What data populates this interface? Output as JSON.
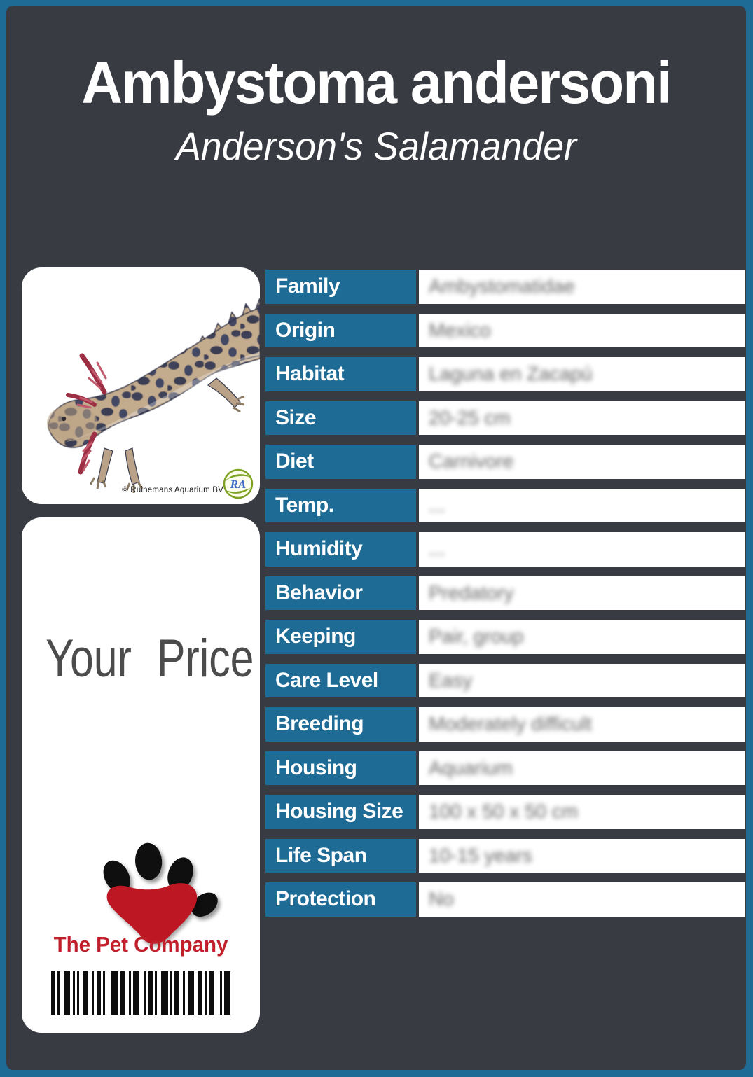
{
  "header": {
    "title": "Ambystoma andersoni",
    "subtitle": "Anderson's Salamander"
  },
  "photo_card": {
    "copyright": "© Ruinemans Aquarium BV",
    "supplier_logo_text": "RA"
  },
  "price_card": {
    "price_label": "Your Price",
    "company": "The Pet Company"
  },
  "table": {
    "rows": [
      {
        "label": "Family",
        "value": "Ambystomatidae"
      },
      {
        "label": "Origin",
        "value": "Mexico"
      },
      {
        "label": "Habitat",
        "value": "Laguna en Zacapú"
      },
      {
        "label": "Size",
        "value": "20-25 cm"
      },
      {
        "label": "Diet",
        "value": "Carnivore"
      },
      {
        "label": "Temp.",
        "value": "..."
      },
      {
        "label": "Humidity",
        "value": "..."
      },
      {
        "label": "Behavior",
        "value": "Predatory"
      },
      {
        "label": "Keeping",
        "value": "Pair, group"
      },
      {
        "label": "Care Level",
        "value": "Easy"
      },
      {
        "label": "Breeding",
        "value": "Moderately difficult"
      },
      {
        "label": "Housing",
        "value": "Aquarium"
      },
      {
        "label": "Housing Size",
        "value": "100 x 50 x 50 cm"
      },
      {
        "label": "Life Span",
        "value": "10-15 years"
      },
      {
        "label": "Protection",
        "value": "No"
      }
    ]
  },
  "colors": {
    "frame_blue": "#1e6b95",
    "panel_dark": "#393b42",
    "label_blue": "#1e6b95",
    "accent_red": "#c1202b",
    "price_gray": "#4c4c4c",
    "value_gray": "#5a5a5a"
  },
  "barcode_pattern": [
    [
      2,
      1
    ],
    [
      1,
      2
    ],
    [
      3,
      1
    ],
    [
      1,
      1
    ],
    [
      1,
      2
    ],
    [
      2,
      2
    ],
    [
      1,
      1
    ],
    [
      2,
      1
    ],
    [
      1,
      3
    ],
    [
      3,
      1
    ],
    [
      2,
      2
    ],
    [
      1,
      1
    ],
    [
      3,
      2
    ],
    [
      1,
      1
    ],
    [
      2,
      1
    ],
    [
      1,
      2
    ],
    [
      3,
      1
    ],
    [
      1,
      1
    ],
    [
      2,
      2
    ],
    [
      1,
      1
    ],
    [
      3,
      2
    ],
    [
      2,
      1
    ],
    [
      1,
      1
    ],
    [
      2,
      3
    ],
    [
      1,
      1
    ],
    [
      3,
      0
    ]
  ]
}
